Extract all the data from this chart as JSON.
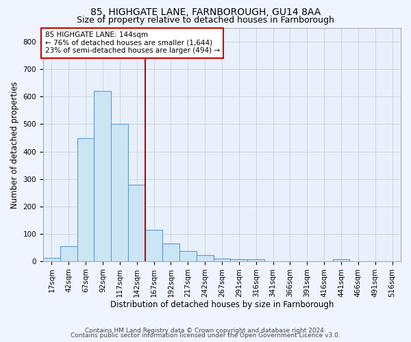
{
  "title1": "85, HIGHGATE LANE, FARNBOROUGH, GU14 8AA",
  "title2": "Size of property relative to detached houses in Farnborough",
  "xlabel": "Distribution of detached houses by size in Farnborough",
  "ylabel": "Number of detached properties",
  "footer1": "Contains HM Land Registry data © Crown copyright and database right 2024.",
  "footer2": "Contains public sector information licensed under the Open Government Licence v3.0.",
  "annotation_line1": "85 HIGHGATE LANE: 144sqm",
  "annotation_line2": "← 76% of detached houses are smaller (1,644)",
  "annotation_line3": "23% of semi-detached houses are larger (494) →",
  "bar_labels": [
    "17sqm",
    "42sqm",
    "67sqm",
    "92sqm",
    "117sqm",
    "142sqm",
    "167sqm",
    "192sqm",
    "217sqm",
    "242sqm",
    "267sqm",
    "291sqm",
    "316sqm",
    "341sqm",
    "366sqm",
    "391sqm",
    "416sqm",
    "441sqm",
    "466sqm",
    "491sqm",
    "516sqm"
  ],
  "bar_values": [
    12,
    55,
    450,
    620,
    500,
    280,
    115,
    65,
    38,
    22,
    10,
    8,
    8,
    0,
    0,
    0,
    0,
    8,
    0,
    0,
    0
  ],
  "bar_color": "#cce5f5",
  "bar_edge_color": "#5b9bd5",
  "vline_x": 5.5,
  "vline_color": "#cc0000",
  "bg_color": "#f0f4ff",
  "plot_bg_color": "#e8f0fb",
  "ylim": [
    0,
    850
  ],
  "yticks": [
    0,
    100,
    200,
    300,
    400,
    500,
    600,
    700,
    800
  ],
  "grid_color": "#c8d0e0",
  "title_fontsize": 10,
  "subtitle_fontsize": 9,
  "axis_label_fontsize": 8.5,
  "tick_fontsize": 7.5,
  "annotation_fontsize": 7.5,
  "footer_fontsize": 6.5,
  "annotation_box_color": "#ffffff",
  "annotation_box_edge": "#cc0000"
}
